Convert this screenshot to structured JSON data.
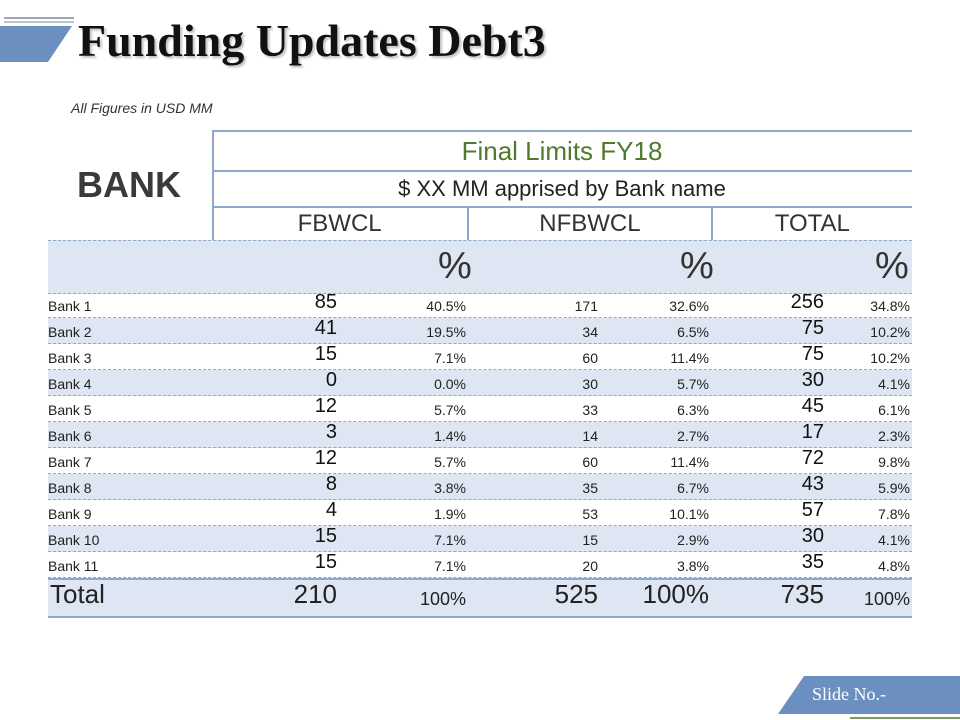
{
  "title": "Funding Updates Debt3",
  "subtitle": "All Figures in USD MM",
  "bank_label": "BANK",
  "header": {
    "final_limits": "Final Limits FY18",
    "apprised": "$ XX MM apprised by Bank name",
    "columns": [
      "FBWCL",
      "NFBWCL",
      "TOTAL"
    ],
    "pct_symbol": "%"
  },
  "rows": [
    {
      "name": "Bank 1",
      "fbwcl": "85",
      "fbwcl_pct": "40.5%",
      "nfbwcl": "171",
      "nfbwcl_pct": "32.6%",
      "total": "256",
      "total_pct": "34.8%"
    },
    {
      "name": "Bank 2",
      "fbwcl": "41",
      "fbwcl_pct": "19.5%",
      "nfbwcl": "34",
      "nfbwcl_pct": "6.5%",
      "total": "75",
      "total_pct": "10.2%"
    },
    {
      "name": "Bank 3",
      "fbwcl": "15",
      "fbwcl_pct": "7.1%",
      "nfbwcl": "60",
      "nfbwcl_pct": "11.4%",
      "total": "75",
      "total_pct": "10.2%"
    },
    {
      "name": "Bank 4",
      "fbwcl": "0",
      "fbwcl_pct": "0.0%",
      "nfbwcl": "30",
      "nfbwcl_pct": "5.7%",
      "total": "30",
      "total_pct": "4.1%"
    },
    {
      "name": "Bank 5",
      "fbwcl": "12",
      "fbwcl_pct": "5.7%",
      "nfbwcl": "33",
      "nfbwcl_pct": "6.3%",
      "total": "45",
      "total_pct": "6.1%"
    },
    {
      "name": "Bank 6",
      "fbwcl": "3",
      "fbwcl_pct": "1.4%",
      "nfbwcl": "14",
      "nfbwcl_pct": "2.7%",
      "total": "17",
      "total_pct": "2.3%"
    },
    {
      "name": "Bank 7",
      "fbwcl": "12",
      "fbwcl_pct": "5.7%",
      "nfbwcl": "60",
      "nfbwcl_pct": "11.4%",
      "total": "72",
      "total_pct": "9.8%"
    },
    {
      "name": "Bank 8",
      "fbwcl": "8",
      "fbwcl_pct": "3.8%",
      "nfbwcl": "35",
      "nfbwcl_pct": "6.7%",
      "total": "43",
      "total_pct": "5.9%"
    },
    {
      "name": "Bank 9",
      "fbwcl": "4",
      "fbwcl_pct": "1.9%",
      "nfbwcl": "53",
      "nfbwcl_pct": "10.1%",
      "total": "57",
      "total_pct": "7.8%"
    },
    {
      "name": "Bank 10",
      "fbwcl": "15",
      "fbwcl_pct": "7.1%",
      "nfbwcl": "15",
      "nfbwcl_pct": "2.9%",
      "total": "30",
      "total_pct": "4.1%"
    },
    {
      "name": "Bank 11",
      "fbwcl": "15",
      "fbwcl_pct": "7.1%",
      "nfbwcl": "20",
      "nfbwcl_pct": "3.8%",
      "total": "35",
      "total_pct": "4.8%"
    }
  ],
  "total": {
    "name": "Total",
    "fbwcl": "210",
    "fbwcl_pct": "100%",
    "nfbwcl": "525",
    "nfbwcl_pct": "100%",
    "total": "735",
    "total_pct": "100%"
  },
  "slide_no": "Slide No.-",
  "colors": {
    "accent_blue": "#6b8fbf",
    "header_green": "#4f7a2e",
    "row_tint": "#dde6f2",
    "rule": "#8ea9c9"
  }
}
